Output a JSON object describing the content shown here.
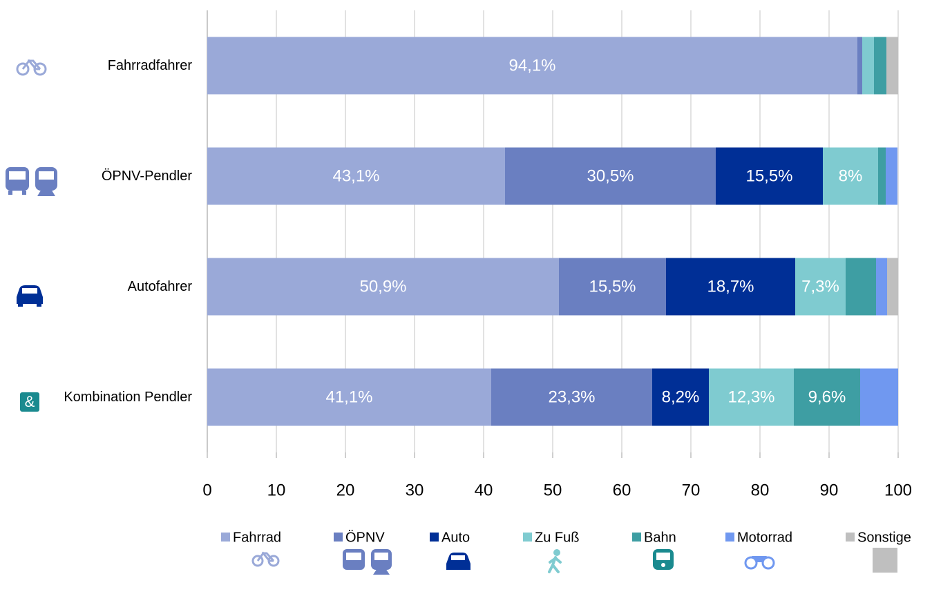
{
  "chart_data": {
    "type": "stacked-barh",
    "categories": [
      "Fahrradfahrer",
      "ÖPNV-Pendler",
      "Autofahrer",
      "Kombination Pendler"
    ],
    "series": [
      {
        "name": "Fahrrad",
        "color": "#9aa9d8",
        "values": [
          94.1,
          43.1,
          50.9,
          41.1
        ],
        "value_labels": [
          "94,1%",
          "43,1%",
          "50,9%",
          "41,1%"
        ]
      },
      {
        "name": "ÖPNV",
        "color": "#6a7fc1",
        "values": [
          0.7,
          30.5,
          15.5,
          23.3
        ],
        "value_labels": [
          null,
          "30,5%",
          "15,5%",
          "23,3%"
        ]
      },
      {
        "name": "Auto",
        "color": "#002f96",
        "values": [
          0,
          15.5,
          18.7,
          8.2
        ],
        "value_labels": [
          null,
          "15,5%",
          "18,7%",
          "8,2%"
        ]
      },
      {
        "name": "Zu Fuß",
        "color": "#7fcbd0",
        "values": [
          1.7,
          8,
          7.3,
          12.3
        ],
        "value_labels": [
          null,
          "8%",
          "7,3%",
          "12,3%"
        ]
      },
      {
        "name": "Bahn",
        "color": "#3e9ea3",
        "values": [
          1.8,
          1.1,
          4.4,
          9.6
        ],
        "value_labels": [
          null,
          null,
          null,
          "9,6%"
        ]
      },
      {
        "name": "Motorrad",
        "color": "#7098f0",
        "values": [
          0,
          1.7,
          1.6,
          5.5
        ],
        "value_labels": [
          null,
          null,
          null,
          null
        ]
      },
      {
        "name": "Sonstige",
        "color": "#bfbfbf",
        "values": [
          1.7,
          0,
          1.6,
          0
        ],
        "value_labels": [
          null,
          null,
          null,
          null
        ]
      }
    ],
    "xlim": [
      0,
      100
    ],
    "xticks": [
      0,
      10,
      20,
      30,
      40,
      50,
      60,
      70,
      80,
      90,
      100
    ],
    "grid": true,
    "legend": "bottom"
  }
}
